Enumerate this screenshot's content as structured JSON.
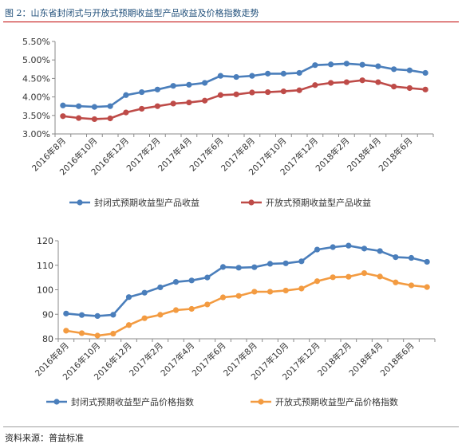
{
  "figure": {
    "title": "图 2：山东省封闭式与开放式预期收益型产品收益及价格指数走势",
    "source": "资料来源：普益标准"
  },
  "chart_data": [
    {
      "type": "line",
      "x": [
        "2016年8月",
        "2016年9月",
        "2016年10月",
        "2016年11月",
        "2016年12月",
        "2017年1月",
        "2017年2月",
        "2017年3月",
        "2017年4月",
        "2017年5月",
        "2017年6月",
        "2017年7月",
        "2017年8月",
        "2017年9月",
        "2017年10月",
        "2017年11月",
        "2017年12月",
        "2018年1月",
        "2018年2月",
        "2018年3月",
        "2018年4月",
        "2018年5月",
        "2018年6月",
        "2018年7月"
      ],
      "tick_labels": [
        "2016年8月",
        "2016年10月",
        "2016年12月",
        "2017年2月",
        "2017年4月",
        "2017年6月",
        "2017年8月",
        "2017年10月",
        "2017年12月",
        "2018年2月",
        "2018年4月",
        "2018年6月"
      ],
      "yticks": [
        "3.00%",
        "3.50%",
        "4.00%",
        "4.50%",
        "5.00%",
        "5.50%"
      ],
      "ylim": [
        3.0,
        5.5
      ],
      "grid": false,
      "legend_position": "bottom",
      "series": [
        {
          "name": "封闭式预期收益型产品收益",
          "color": "#4a7ebb",
          "values": [
            3.77,
            3.75,
            3.73,
            3.75,
            4.05,
            4.13,
            4.2,
            4.3,
            4.33,
            4.38,
            4.57,
            4.54,
            4.57,
            4.63,
            4.63,
            4.65,
            4.86,
            4.88,
            4.9,
            4.87,
            4.83,
            4.75,
            4.72,
            4.65
          ]
        },
        {
          "name": "开放式预期收益型产品收益",
          "color": "#be4b48",
          "values": [
            3.48,
            3.43,
            3.4,
            3.42,
            3.58,
            3.68,
            3.75,
            3.82,
            3.85,
            3.9,
            4.05,
            4.07,
            4.12,
            4.13,
            4.15,
            4.18,
            4.32,
            4.38,
            4.4,
            4.45,
            4.4,
            4.28,
            4.24,
            4.2
          ]
        }
      ]
    },
    {
      "type": "line",
      "x": [
        "2016年8月",
        "2016年9月",
        "2016年10月",
        "2016年11月",
        "2016年12月",
        "2017年1月",
        "2017年2月",
        "2017年3月",
        "2017年4月",
        "2017年5月",
        "2017年6月",
        "2017年7月",
        "2017年8月",
        "2017年9月",
        "2017年10月",
        "2017年11月",
        "2017年12月",
        "2018年1月",
        "2018年2月",
        "2018年3月",
        "2018年4月",
        "2018年5月",
        "2018年6月",
        "2018年7月"
      ],
      "tick_labels": [
        "2016年8月",
        "2016年10月",
        "2016年12月",
        "2017年2月",
        "2017年4月",
        "2017年6月",
        "2017年8月",
        "2017年10月",
        "2017年12月",
        "2018年2月",
        "2018年4月",
        "2018年6月"
      ],
      "yticks": [
        "80",
        "90",
        "100",
        "110",
        "120"
      ],
      "ylim": [
        80,
        120
      ],
      "grid": false,
      "legend_position": "bottom",
      "series": [
        {
          "name": "封闭式预期收益型产品价格指数",
          "color": "#4a7ebb",
          "values": [
            90.3,
            89.7,
            89.3,
            89.8,
            97.0,
            98.8,
            101.0,
            103.2,
            103.8,
            105.0,
            109.3,
            109.0,
            109.2,
            110.6,
            110.8,
            111.6,
            116.4,
            117.4,
            118.0,
            116.8,
            115.8,
            113.3,
            113.0,
            111.4
          ]
        },
        {
          "name": "开放式预期收益型产品价格指数",
          "color": "#f39b41",
          "values": [
            83.3,
            82.3,
            81.3,
            82.1,
            85.6,
            88.4,
            89.8,
            91.7,
            92.2,
            94.0,
            96.9,
            97.5,
            99.2,
            99.2,
            99.7,
            100.5,
            103.5,
            105.1,
            105.3,
            106.8,
            105.4,
            103.0,
            101.8,
            101.1
          ]
        }
      ]
    }
  ]
}
